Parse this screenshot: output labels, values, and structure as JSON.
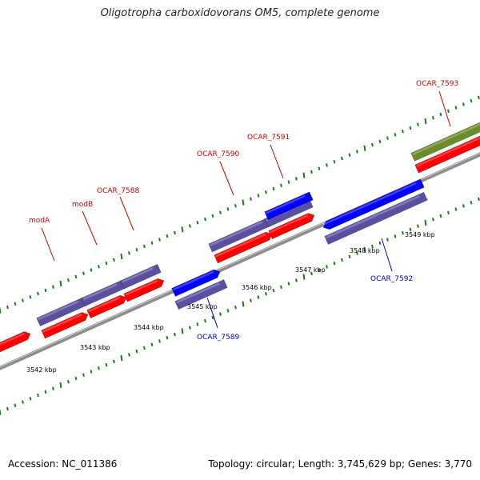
{
  "header": {
    "title": "Oligotropha carboxidovorans OM5, complete genome"
  },
  "footer": {
    "accession": "Accession: NC_011386",
    "stats": "Topology: circular; Length: 3,745,629 bp; Genes: 3,770"
  },
  "colors": {
    "backbone": "#8c8c8c",
    "cds": "#ff0000",
    "cds_alt": "#0000ff",
    "orf": "#5a4fa0",
    "rna": "#6b8c2a",
    "ticks": "#1f7a1f",
    "label_red": "#cc0000",
    "label_blue": "#0000cc"
  },
  "scale_labels": [
    "3542 kbp",
    "3543 kbp",
    "3544 kbp",
    "3545 kbp",
    "3546 kbp",
    "3547 kbp",
    "3548 kbp",
    "3549 kbp"
  ],
  "gene_labels": [
    {
      "text": "modA",
      "color": "red"
    },
    {
      "text": "modB",
      "color": "red"
    },
    {
      "text": "OCAR_7588",
      "color": "red"
    },
    {
      "text": "OCAR_7590",
      "color": "red"
    },
    {
      "text": "OCAR_7591",
      "color": "red"
    },
    {
      "text": "OCAR_7593",
      "color": "red"
    },
    {
      "text": "OCAR_7589",
      "color": "blue"
    },
    {
      "text": "OCAR_7592",
      "color": "blue"
    }
  ]
}
